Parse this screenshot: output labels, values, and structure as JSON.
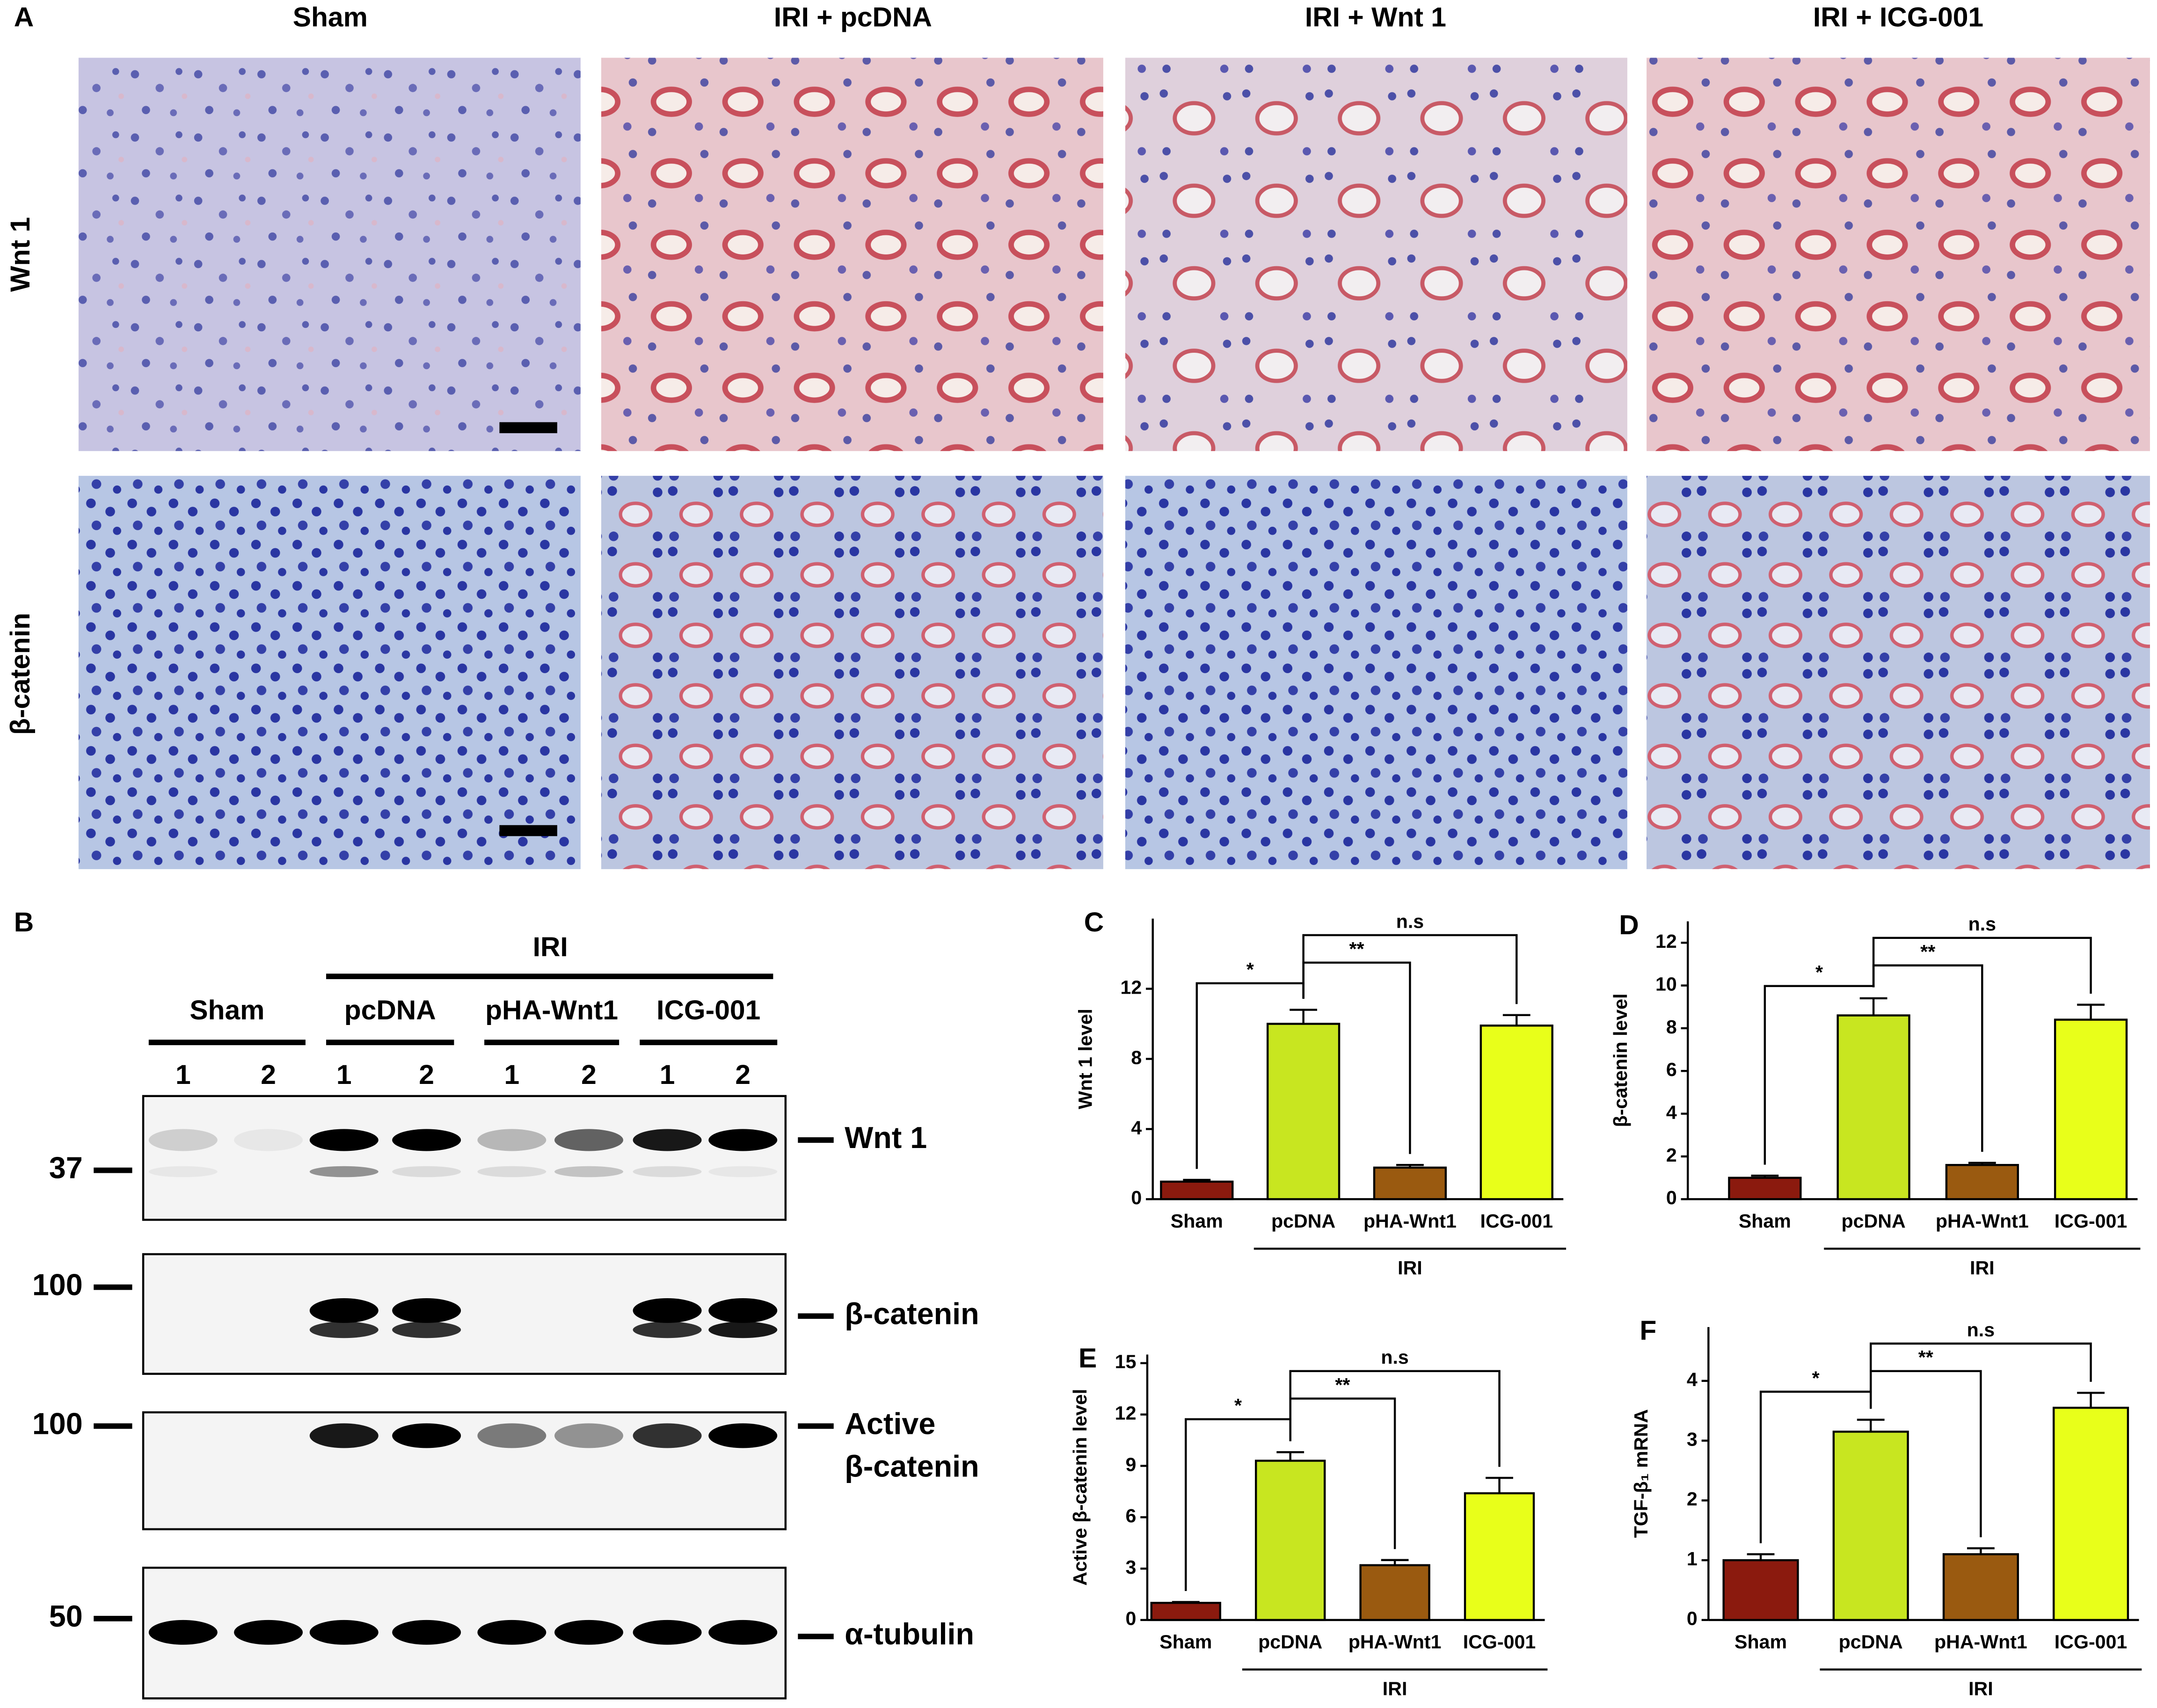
{
  "figure": {
    "panel_a": {
      "letter": "A",
      "columns": [
        "Sham",
        "IRI + pcDNA",
        "IRI + Wnt 1",
        "IRI + ICG-001"
      ],
      "rows": [
        "Wnt 1",
        "β-catenin"
      ]
    },
    "panel_b": {
      "letter": "B",
      "group": "IRI",
      "conditions": [
        "Sham",
        "pcDNA",
        "pHA-Wnt1",
        "ICG-001"
      ],
      "lanes": [
        1,
        2,
        1,
        2,
        1,
        2,
        1,
        2
      ],
      "blots": [
        {
          "name": [
            "Wnt 1"
          ],
          "marker": 37
        },
        {
          "name": [
            "β-catenin"
          ],
          "marker": 100
        },
        {
          "name": [
            "Active",
            "β-catenin"
          ],
          "marker": 100
        },
        {
          "name": [
            "α-tubulin"
          ],
          "marker": 50
        }
      ]
    }
  },
  "chart_data": [
    {
      "type": "bar",
      "panel": "C",
      "ylabel": "Wnt 1 level",
      "categories": [
        "Sham",
        "pcDNA",
        "pHA-Wnt1",
        "ICG-001"
      ],
      "values": [
        1.0,
        10.0,
        1.8,
        9.9
      ],
      "errors": [
        0.1,
        0.8,
        0.15,
        0.6
      ],
      "colors": [
        "#8b1a0e",
        "#c8e620",
        "#9a5a10",
        "#e8ff1a"
      ],
      "ylim": [
        0,
        16
      ],
      "yticks": [
        0,
        4,
        8,
        12
      ],
      "group_label": "IRI",
      "annotations": [
        "*",
        "**",
        "n.s"
      ]
    },
    {
      "type": "bar",
      "panel": "D",
      "ylabel": "β-catenin level",
      "categories": [
        "Sham",
        "pcDNA",
        "pHA-Wnt1",
        "ICG-001"
      ],
      "values": [
        1.0,
        8.6,
        1.6,
        8.4
      ],
      "errors": [
        0.1,
        0.8,
        0.1,
        0.7
      ],
      "colors": [
        "#8b1a0e",
        "#c8e620",
        "#9a5a10",
        "#e8ff1a"
      ],
      "ylim": [
        0,
        13
      ],
      "yticks": [
        0,
        2,
        4,
        6,
        8,
        10,
        12
      ],
      "group_label": "IRI",
      "annotations": [
        "*",
        "**",
        "n.s"
      ]
    },
    {
      "type": "bar",
      "panel": "E",
      "ylabel": "Active β-catenin level",
      "categories": [
        "Sham",
        "pcDNA",
        "pHA-Wnt1",
        "ICG-001"
      ],
      "values": [
        1.0,
        9.3,
        3.2,
        7.4
      ],
      "errors": [
        0.05,
        0.5,
        0.3,
        0.9
      ],
      "colors": [
        "#8b1a0e",
        "#c8e620",
        "#9a5a10",
        "#e8ff1a"
      ],
      "ylim": [
        0,
        15.5
      ],
      "yticks": [
        0,
        3,
        6,
        9,
        12,
        15
      ],
      "group_label": "IRI",
      "annotations": [
        "*",
        "**",
        "n.s"
      ]
    },
    {
      "type": "bar",
      "panel": "F",
      "ylabel": "TGF-β₁ mRNA",
      "categories": [
        "Sham",
        "pcDNA",
        "pHA-Wnt1",
        "ICG-001"
      ],
      "values": [
        1.0,
        3.15,
        1.1,
        3.55
      ],
      "errors": [
        0.1,
        0.2,
        0.1,
        0.25
      ],
      "colors": [
        "#8b1a0e",
        "#c8e620",
        "#9a5a10",
        "#e8ff1a"
      ],
      "ylim": [
        0,
        4.9
      ],
      "yticks": [
        0,
        1,
        2,
        3,
        4
      ],
      "group_label": "IRI",
      "annotations": [
        "*",
        "**",
        "n.s"
      ]
    }
  ]
}
